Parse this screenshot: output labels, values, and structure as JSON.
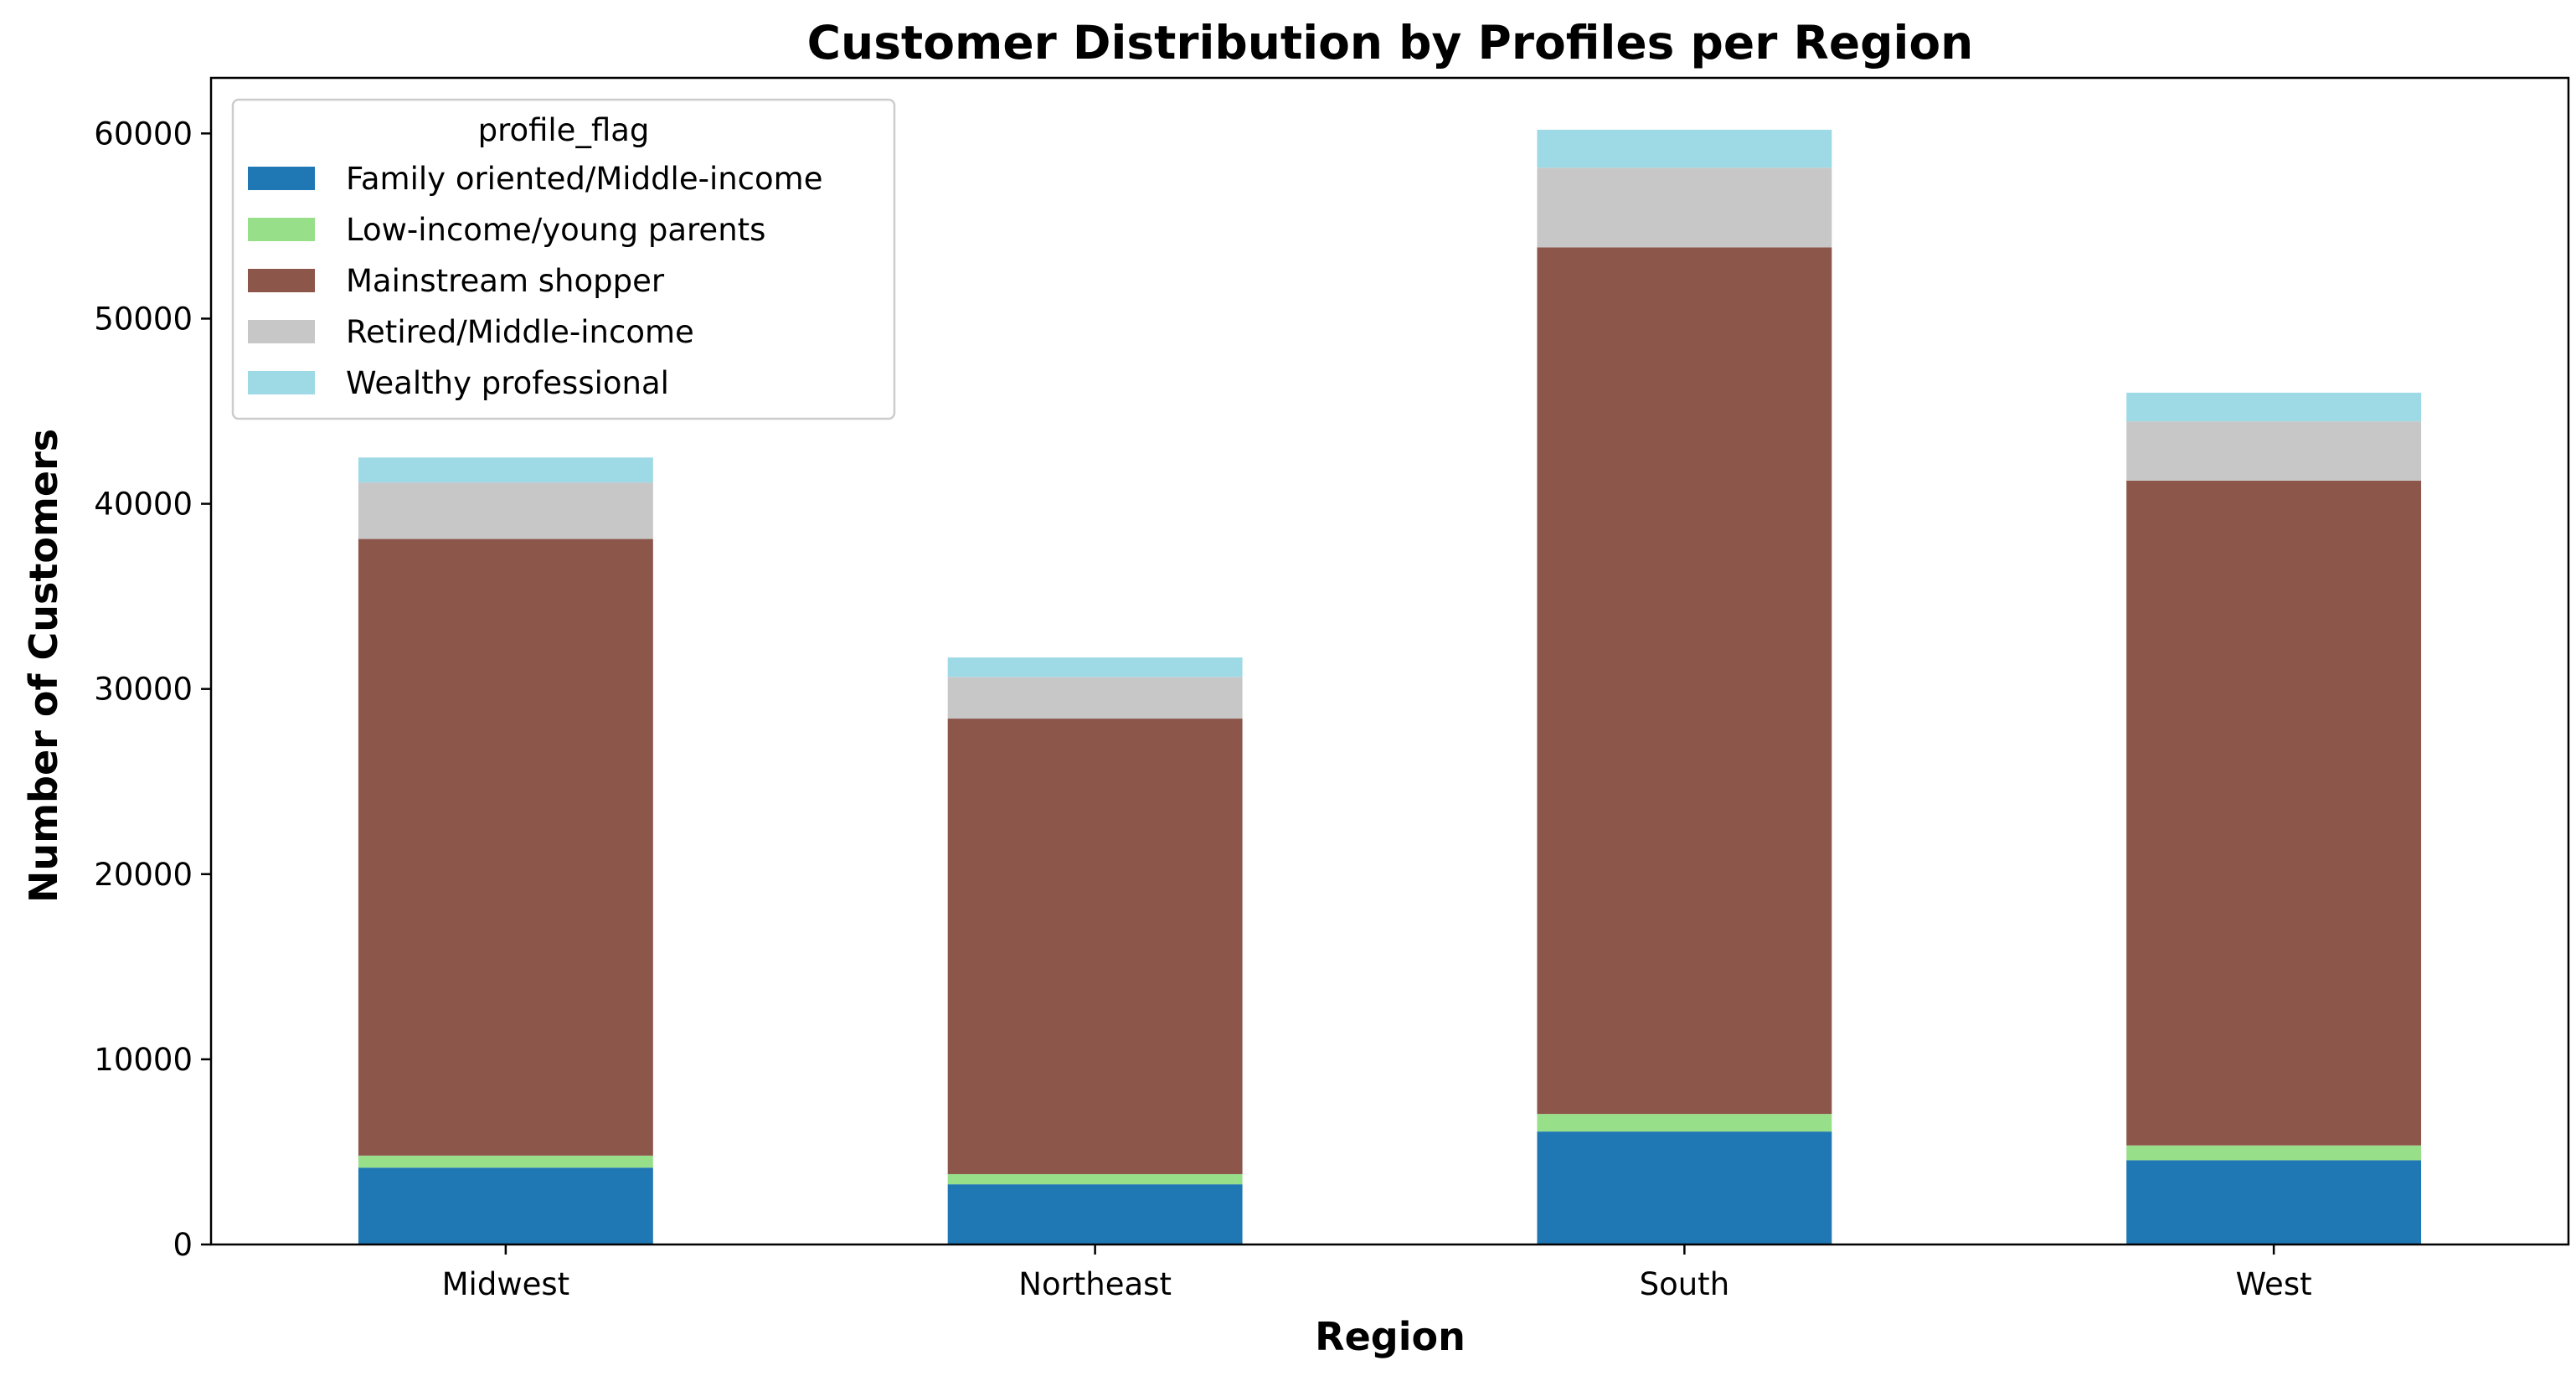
{
  "chart_data": {
    "type": "bar",
    "stacked": true,
    "title": "Customer Distribution by Profiles per Region",
    "xlabel": "Region",
    "ylabel": "Number of Customers",
    "categories": [
      "Midwest",
      "Northeast",
      "South",
      "West"
    ],
    "ylim": [
      0,
      63000
    ],
    "yticks": [
      0,
      10000,
      20000,
      30000,
      40000,
      50000,
      60000
    ],
    "grid": false,
    "legend": {
      "title": "profile_flag",
      "placement": "top-left"
    },
    "series": [
      {
        "name": "Family oriented/Middle-income",
        "color": "#1f77b4",
        "values": [
          4150,
          3250,
          6100,
          4550
        ]
      },
      {
        "name": "Low-income/young parents",
        "color": "#98df8a",
        "values": [
          650,
          550,
          950,
          800
        ]
      },
      {
        "name": "Mainstream shopper",
        "color": "#8c564b",
        "values": [
          33300,
          24600,
          46800,
          35900
        ]
      },
      {
        "name": "Retired/Middle-income",
        "color": "#c7c7c7",
        "values": [
          3050,
          2250,
          4300,
          3200
        ]
      },
      {
        "name": "Wealthy professional",
        "color": "#9edae5",
        "values": [
          1350,
          1050,
          2050,
          1550
        ]
      }
    ]
  }
}
